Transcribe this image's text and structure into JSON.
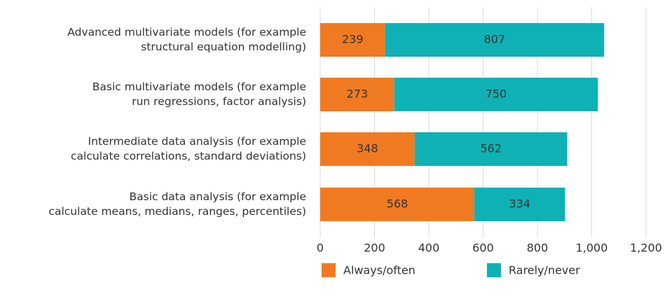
{
  "chart_data": {
    "type": "stacked-bar-horizontal",
    "categories": [
      "Advanced multivariate models (for example\nstructural equation modelling)",
      "Basic multivariate models (for example\nrun regressions, factor analysis)",
      "Intermediate data analysis (for example\ncalculate correlations, standard deviations)",
      "Basic data analysis (for example\ncalculate means, medians, ranges, percentiles)"
    ],
    "series": [
      {
        "name": "Always/often",
        "color": "#f07a22",
        "values": [
          239,
          273,
          348,
          568
        ]
      },
      {
        "name": "Rarely/never",
        "color": "#0fb1b4",
        "values": [
          807,
          750,
          562,
          334
        ]
      }
    ],
    "xlim": [
      0,
      1200
    ],
    "xticks": [
      0,
      200,
      400,
      600,
      800,
      {
        "value": 1000,
        "label": "1,000"
      },
      {
        "value": 1200,
        "label": "1,200"
      }
    ],
    "grid": true,
    "legend": "bottom"
  }
}
